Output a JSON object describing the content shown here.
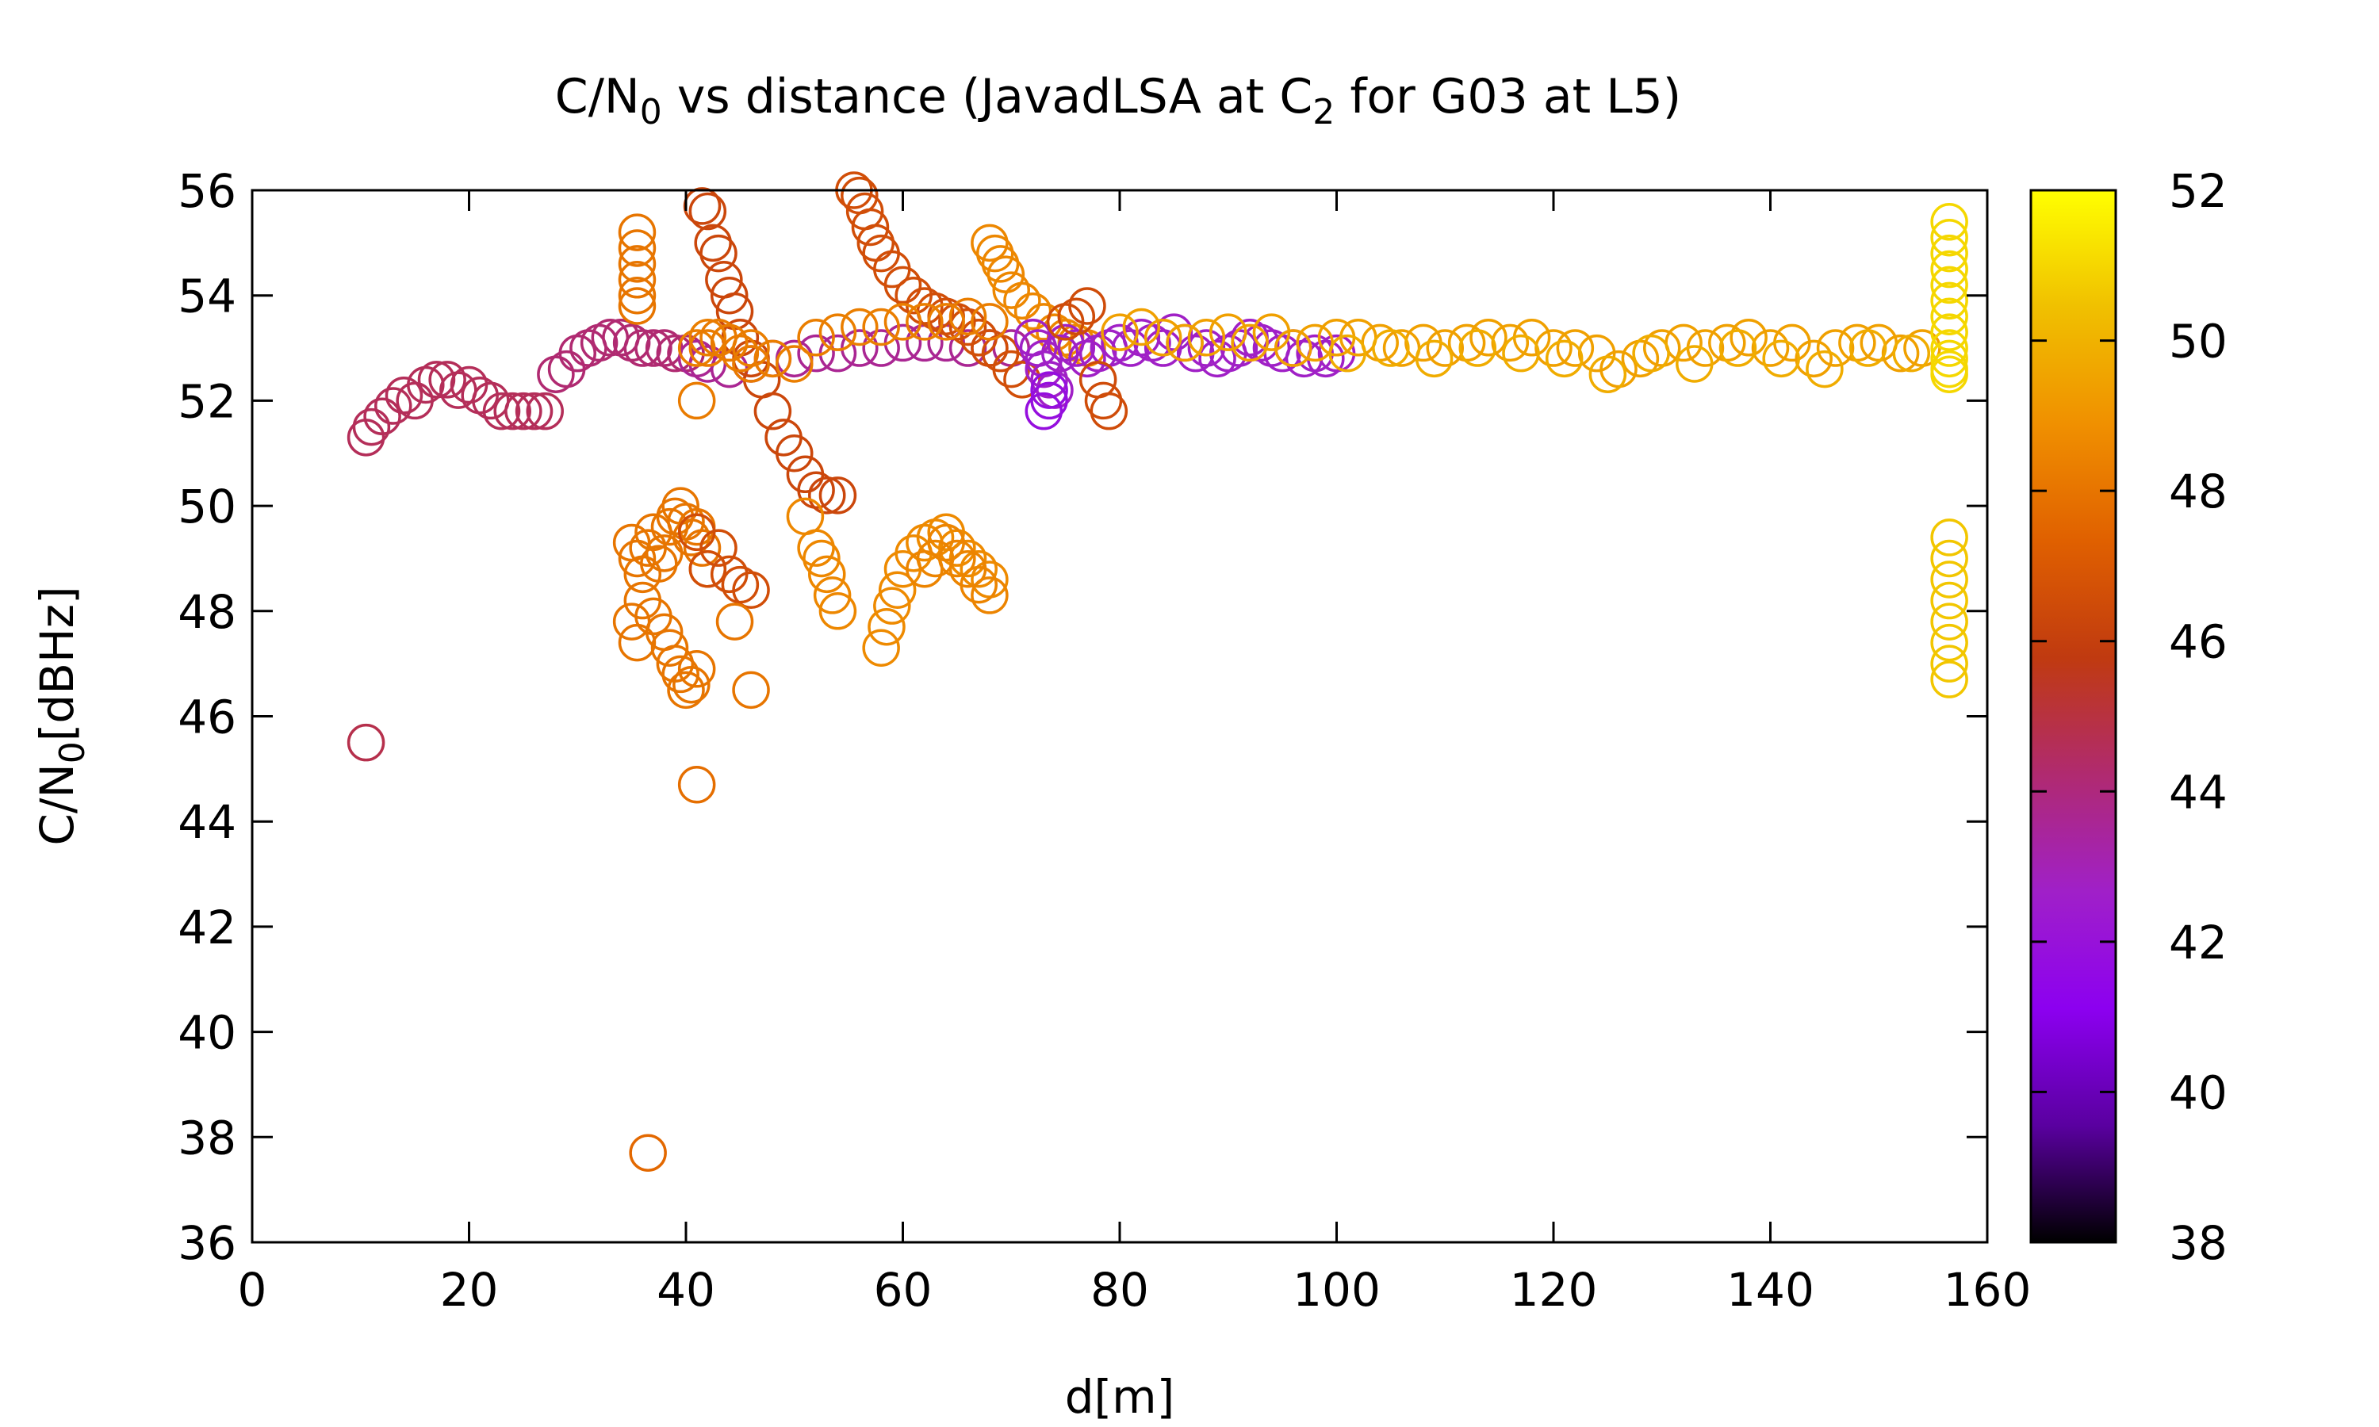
{
  "chart_data": {
    "type": "scatter",
    "title": {
      "main": "C/N",
      "main_sub": "0",
      "rest1": " vs distance (JavadLSA at C",
      "rest1_sub": "2",
      "rest2": " for G03 at L5)"
    },
    "xlabel": "d[m]",
    "ylabel": {
      "main": "C/N",
      "sub": "0",
      "rest": "[dBHz]"
    },
    "xlim": [
      0,
      160
    ],
    "ylim": [
      36,
      56
    ],
    "xticks": [
      0,
      20,
      40,
      60,
      80,
      100,
      120,
      140,
      160
    ],
    "yticks": [
      36,
      38,
      40,
      42,
      44,
      46,
      48,
      50,
      52,
      54,
      56
    ],
    "colorbar": {
      "range": [
        38,
        52
      ],
      "ticks": [
        38,
        40,
        42,
        44,
        46,
        48,
        50,
        52
      ],
      "palette": [
        "#000000",
        "#5a00a0",
        "#8c00f0",
        "#a020c8",
        "#b02a70",
        "#c03a10",
        "#e06000",
        "#f09000",
        "#f0c000",
        "#ffff00"
      ]
    },
    "marker": "open-circle",
    "series": [
      {
        "x": [
          10.5,
          11,
          12,
          13,
          14,
          15,
          16,
          17,
          18,
          19,
          20,
          21,
          22,
          23,
          24,
          25,
          26,
          27
        ],
        "y": [
          51.3,
          51.5,
          51.7,
          51.9,
          52.1,
          52.0,
          52.3,
          52.4,
          52.4,
          52.2,
          52.3,
          52.1,
          52.0,
          51.8,
          51.8,
          51.8,
          51.8,
          51.8
        ],
        "c": 44.6
      },
      {
        "x": [
          28,
          29,
          30,
          31,
          32,
          33,
          34,
          35,
          36,
          37,
          38,
          39,
          40
        ],
        "y": [
          52.5,
          52.6,
          52.9,
          53.0,
          53.1,
          53.2,
          53.2,
          53.1,
          53.0,
          53.0,
          53.0,
          52.9,
          52.9
        ],
        "c": 44.2
      },
      {
        "x": [
          10.5
        ],
        "y": [
          45.5
        ],
        "c": 44.8
      },
      {
        "x": [
          41,
          42,
          44,
          46,
          48,
          50,
          52,
          54,
          56,
          58,
          60,
          62,
          64,
          66,
          68,
          70
        ],
        "y": [
          52.8,
          52.7,
          52.6,
          52.7,
          52.8,
          52.8,
          52.9,
          52.9,
          53.0,
          53.0,
          53.1,
          53.1,
          53.1,
          53.0,
          53.0,
          53.0
        ],
        "c": 43.6
      },
      {
        "x": [
          35.5,
          35.5,
          35.5,
          35.5,
          35.5,
          35.5
        ],
        "y": [
          55.2,
          54.9,
          54.6,
          54.3,
          54.0,
          53.8
        ],
        "c": 48.0
      },
      {
        "x": [
          41.5,
          42,
          42.5,
          43,
          43.5,
          44,
          44.5,
          45,
          46,
          47,
          48,
          49,
          50,
          51,
          52,
          53,
          54
        ],
        "y": [
          55.7,
          55.6,
          55.0,
          54.8,
          54.3,
          54.0,
          53.7,
          53.2,
          52.8,
          52.4,
          51.8,
          51.3,
          51.0,
          50.6,
          50.3,
          50.2,
          50.2
        ],
        "c": 46.3
      },
      {
        "x": [
          55.5,
          56,
          56.5,
          57,
          57.5,
          58,
          59,
          60,
          61,
          62,
          63,
          64,
          65,
          66,
          67,
          68,
          69,
          70,
          71
        ],
        "y": [
          56.0,
          55.9,
          55.6,
          55.3,
          55.0,
          54.8,
          54.5,
          54.2,
          54.0,
          53.8,
          53.7,
          53.6,
          53.5,
          53.4,
          53.2,
          53.0,
          52.9,
          52.6,
          52.4
        ],
        "c": 46.6
      },
      {
        "x": [
          41,
          42,
          44,
          46,
          48,
          50,
          52,
          54,
          56,
          58,
          60,
          62,
          64,
          66,
          68
        ],
        "y": [
          53.0,
          53.2,
          53.1,
          53.0,
          52.8,
          52.7,
          53.2,
          53.3,
          53.4,
          53.4,
          53.5,
          53.5,
          53.5,
          53.6,
          53.5
        ],
        "c": 48.3
      },
      {
        "x": [
          68,
          68.5,
          69,
          69.5,
          70,
          71,
          72,
          73,
          74,
          75,
          76,
          77
        ],
        "y": [
          55.0,
          54.8,
          54.6,
          54.4,
          54.1,
          53.9,
          53.7,
          53.5,
          53.3,
          53.2,
          53.1,
          53.0
        ],
        "c": 48.6
      },
      {
        "x": [
          41,
          42,
          43,
          44,
          45,
          46
        ],
        "y": [
          52.0,
          53.0,
          53.2,
          53.1,
          52.9,
          52.7
        ],
        "c": 48.2
      },
      {
        "x": [
          35,
          35.5,
          36,
          36.5,
          37,
          37.5,
          38,
          38.5,
          39,
          39.5,
          40,
          40.5,
          41,
          41.5,
          42
        ],
        "y": [
          49.3,
          49.0,
          48.7,
          49.2,
          49.5,
          48.9,
          49.1,
          49.6,
          49.8,
          50.0,
          49.7,
          49.4,
          49.6,
          49.2,
          48.8
        ],
        "c": 48.0
      },
      {
        "x": [
          35,
          35.5,
          36,
          37,
          38,
          38.5,
          39,
          39.5,
          40,
          40.5,
          41
        ],
        "y": [
          47.8,
          47.4,
          48.2,
          47.9,
          47.6,
          47.3,
          47.0,
          46.8,
          46.5,
          46.6,
          46.9
        ],
        "c": 48.0
      },
      {
        "x": [
          41,
          42,
          43,
          44,
          45,
          46
        ],
        "y": [
          49.5,
          48.8,
          49.2,
          48.7,
          48.5,
          48.4
        ],
        "c": 46.6
      },
      {
        "x": [
          44.5,
          46
        ],
        "y": [
          47.8,
          46.5
        ],
        "c": 48.0
      },
      {
        "x": [
          41
        ],
        "y": [
          44.7
        ],
        "c": 47.8
      },
      {
        "x": [
          36.5
        ],
        "y": [
          37.7
        ],
        "c": 47.6
      },
      {
        "x": [
          51,
          52,
          52.5,
          53,
          53.5,
          54
        ],
        "y": [
          49.8,
          49.2,
          49.0,
          48.7,
          48.3,
          48.0
        ],
        "c": 48.6
      },
      {
        "x": [
          58,
          58.5,
          59,
          59.5,
          60,
          61,
          62,
          63,
          64,
          65,
          66,
          67,
          68
        ],
        "y": [
          47.3,
          47.7,
          48.1,
          48.4,
          48.8,
          49.1,
          49.3,
          49.4,
          49.5,
          49.2,
          49.0,
          48.8,
          48.6
        ],
        "c": 48.7
      },
      {
        "x": [
          62,
          63,
          64,
          65,
          66,
          67,
          68
        ],
        "y": [
          48.8,
          49.0,
          49.3,
          49.0,
          48.8,
          48.5,
          48.3
        ],
        "c": 48.5
      },
      {
        "x": [
          72,
          72.5,
          73,
          73,
          73.5,
          74,
          74.5,
          75,
          76,
          77,
          78,
          79,
          80,
          81,
          82,
          83,
          84,
          85,
          86,
          87,
          88,
          89,
          90,
          91,
          92,
          93,
          94,
          95,
          96,
          97,
          98,
          99,
          100
        ],
        "y": [
          53.2,
          53.0,
          52.8,
          52.6,
          52.4,
          52.2,
          52.9,
          53.1,
          53.0,
          52.8,
          52.9,
          53.0,
          53.1,
          53.0,
          53.2,
          53.1,
          53.0,
          53.3,
          53.1,
          52.9,
          53.0,
          52.8,
          52.9,
          53.0,
          53.2,
          53.1,
          53.0,
          52.9,
          53.0,
          52.8,
          52.9,
          52.8,
          52.9
        ],
        "c": 42.7
      },
      {
        "x": [
          73,
          73.5,
          73.5
        ],
        "y": [
          51.8,
          52.0,
          52.2
        ],
        "c": 41.8
      },
      {
        "x": [
          75,
          76,
          77,
          78,
          78.5,
          79
        ],
        "y": [
          53.5,
          53.6,
          53.8,
          52.4,
          52.0,
          51.8
        ],
        "c": 46.5
      },
      {
        "x": [
          80,
          82,
          84,
          86,
          88,
          90,
          92,
          94,
          96,
          98,
          100,
          102,
          104,
          106,
          108,
          110,
          112,
          114,
          116,
          118,
          120,
          122,
          124,
          126,
          128,
          130,
          132,
          134,
          136,
          138,
          140,
          142,
          144,
          146,
          148,
          150,
          152,
          154
        ],
        "y": [
          53.3,
          53.4,
          53.2,
          53.1,
          53.2,
          53.3,
          53.1,
          53.3,
          53.0,
          53.1,
          53.2,
          53.2,
          53.1,
          53.0,
          53.1,
          53.0,
          53.1,
          53.2,
          53.1,
          53.2,
          53.0,
          53.0,
          52.9,
          52.6,
          52.8,
          53.0,
          53.1,
          53.0,
          53.1,
          53.2,
          53.0,
          53.1,
          52.8,
          53.0,
          53.1,
          53.1,
          52.9,
          53.0
        ],
        "c": 49.4
      },
      {
        "x": [
          101,
          105,
          109,
          113,
          117,
          121,
          125,
          129,
          133,
          137,
          141,
          145,
          149,
          153
        ],
        "y": [
          52.9,
          53.0,
          52.8,
          53.0,
          52.9,
          52.8,
          52.5,
          52.9,
          52.7,
          53.0,
          52.8,
          52.6,
          53.0,
          52.9
        ],
        "c": 49.8
      },
      {
        "x": [
          156.5,
          156.5,
          156.5,
          156.5,
          156.5,
          156.5,
          156.5,
          156.5,
          156.5,
          156.5,
          156.5,
          156.5
        ],
        "y": [
          55.4,
          55.1,
          54.8,
          54.5,
          54.2,
          53.9,
          53.6,
          53.3,
          53.0,
          52.8,
          52.6,
          52.5
        ],
        "c": 51.0
      },
      {
        "x": [
          156.5,
          156.5,
          156.5,
          156.5,
          156.5,
          156.5,
          156.5,
          156.5
        ],
        "y": [
          49.4,
          49.0,
          48.6,
          48.2,
          47.8,
          47.4,
          47.0,
          46.7
        ],
        "c": 50.6
      }
    ]
  }
}
